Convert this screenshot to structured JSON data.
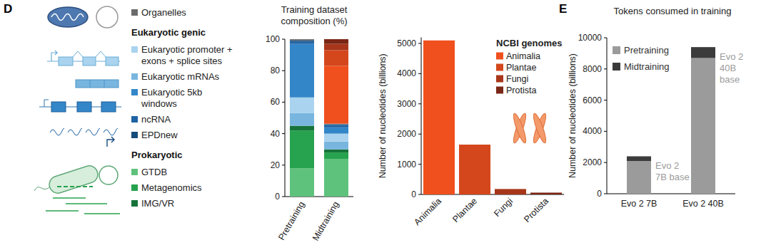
{
  "chart_data": [
    {
      "type": "bar",
      "panel_label": "D",
      "title": "Training dataset\ncomposition (%)",
      "stacked": true,
      "legend": "left",
      "grid": false,
      "categories": [
        "Pretraining",
        "Midtraining"
      ],
      "ylim": [
        0,
        100
      ],
      "yticks": [
        0,
        20,
        40,
        60,
        80,
        100
      ],
      "series": [
        {
          "name": "GTDB",
          "color": "#5fc27c",
          "values": [
            18,
            24
          ]
        },
        {
          "name": "Metagenomics",
          "color": "#27a24e",
          "values": [
            24,
            4
          ]
        },
        {
          "name": "IMG/VR",
          "color": "#16743a",
          "values": [
            3,
            2
          ]
        },
        {
          "name": "Eukaryotic mRNAs",
          "color": "#79b6df",
          "values": [
            8,
            5
          ]
        },
        {
          "name": "Eukaryotic promoter + exons + splice sites",
          "color": "#a9d3ee",
          "values": [
            10,
            5
          ]
        },
        {
          "name": "Eukaryotic 5kb windows",
          "color": "#3386c8",
          "values": [
            34,
            4
          ]
        },
        {
          "name": "ncRNA",
          "color": "#1e63a4",
          "values": [
            1.5,
            1.5
          ]
        },
        {
          "name": "EPDnew",
          "color": "#144a7c",
          "values": [
            0.8,
            0.5
          ]
        },
        {
          "name": "Organelles",
          "color": "#6b6b6b",
          "values": [
            0.7,
            0.3
          ]
        },
        {
          "name": "Animalia",
          "color": "#f0501e",
          "values": [
            0,
            36.7
          ]
        },
        {
          "name": "Plantae",
          "color": "#d4471c",
          "values": [
            0,
            10
          ]
        },
        {
          "name": "Fungi",
          "color": "#a8361a",
          "values": [
            0,
            4
          ]
        },
        {
          "name": "Protista",
          "color": "#7a2614",
          "values": [
            0,
            3
          ]
        }
      ],
      "legend_groups": [
        {
          "series": [
            "Organelles"
          ]
        },
        {
          "title": "Eukaryotic genic",
          "series": [
            "Eukaryotic promoter + exons + splice sites",
            "Eukaryotic mRNAs",
            "Eukaryotic 5kb windows",
            "ncRNA",
            "EPDnew"
          ]
        },
        {
          "title": "Prokaryotic",
          "series": [
            "GTDB",
            "Metagenomics",
            "IMG/VR"
          ]
        }
      ]
    },
    {
      "type": "bar",
      "ylabel": "Number of nucleotides (billions)",
      "legend": "upper right",
      "legend_title": "NCBI genomes",
      "grid": false,
      "categories": [
        "Animalia",
        "Plantae",
        "Fungi",
        "Protista"
      ],
      "values": [
        5100,
        1650,
        180,
        60
      ],
      "colors": [
        "#f0501e",
        "#d4471c",
        "#a8361a",
        "#7a2614"
      ],
      "ylim": [
        0,
        5200
      ],
      "yticks": [
        0,
        1000,
        2000,
        3000,
        4000,
        5000
      ]
    },
    {
      "type": "bar",
      "panel_label": "E",
      "title": "Tokens consumed in training",
      "ylabel": "Number of nucleotides (billions)",
      "stacked": true,
      "legend": "upper left",
      "grid": false,
      "categories": [
        "Evo 2 7B",
        "Evo 2 40B"
      ],
      "ylim": [
        0,
        10000
      ],
      "yticks": [
        0,
        2000,
        4000,
        6000,
        8000,
        10000
      ],
      "series": [
        {
          "name": "Pretraining",
          "color": "#9b9b9b",
          "values": [
            2100,
            8700
          ]
        },
        {
          "name": "Midtraining",
          "color": "#3b3b3b",
          "values": [
            300,
            700
          ]
        }
      ],
      "annotations": [
        {
          "category": "Evo 2 7B",
          "text": "Evo 2\n7B base"
        },
        {
          "category": "Evo 2 40B",
          "text": "Evo 2\n40B\nbase"
        }
      ]
    }
  ]
}
